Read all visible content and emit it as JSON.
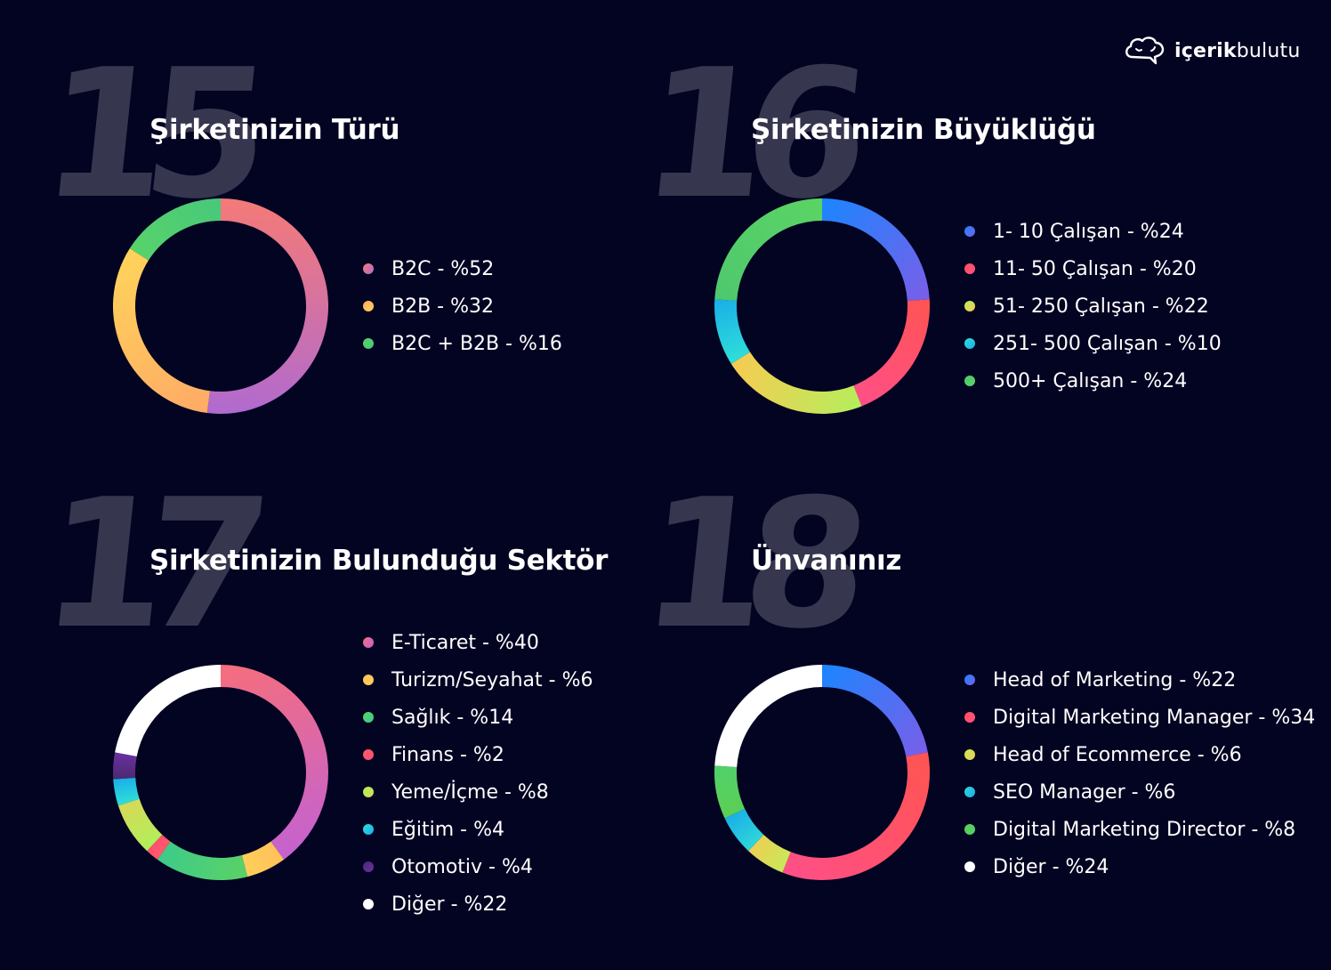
{
  "brand": {
    "name_bold": "içerik",
    "name_light": "bulutu",
    "icon": "cloud-chat-icon"
  },
  "background_color": "#030322",
  "big_number_color": "#37364f",
  "panels": [
    {
      "number": "15",
      "title": "Şirketinizin Türü",
      "legend": [
        {
          "label": "B2C - %52",
          "colors": [
            "#f47a78",
            "#b06ad0"
          ]
        },
        {
          "label": "B2B - %32",
          "colors": [
            "#ffaa66",
            "#ffd45a"
          ]
        },
        {
          "label": "B2C + B2B - %16",
          "colors": [
            "#58d36a",
            "#48c87a"
          ]
        }
      ]
    },
    {
      "number": "16",
      "title": "Şirketinizin Büyüklüğü",
      "legend": [
        {
          "label": "1- 10 Çalışan - %24",
          "colors": [
            "#1a86ff",
            "#7a5ee8"
          ]
        },
        {
          "label": "11- 50 Çalışan - %20",
          "colors": [
            "#ff5452",
            "#ff4f88"
          ]
        },
        {
          "label": "51- 250 Çalışan - %22",
          "colors": [
            "#b5ee5c",
            "#f7cb52"
          ]
        },
        {
          "label": "251- 500 Çalışan - %10",
          "colors": [
            "#2fe0d8",
            "#1aaee8"
          ]
        },
        {
          "label": "500+ Çalışan - %24",
          "colors": [
            "#4ec86e",
            "#5bd464"
          ]
        }
      ]
    },
    {
      "number": "17",
      "title": "Şirketinizin Bulunduğu Sektör",
      "legend": [
        {
          "label": "E-Ticaret - %40",
          "colors": [
            "#f56e7c",
            "#c462d0"
          ]
        },
        {
          "label": "Turizm/Seyahat - %6",
          "colors": [
            "#ffc05a",
            "#ffd05a"
          ]
        },
        {
          "label": "Sağlık - %14",
          "colors": [
            "#5cd166",
            "#3ccb8a"
          ]
        },
        {
          "label": "Finans - %2",
          "colors": [
            "#ff5a6c",
            "#ff4f70"
          ]
        },
        {
          "label": "Yeme/İçme - %8",
          "colors": [
            "#b0f05a",
            "#d8d858"
          ]
        },
        {
          "label": "Eğitim - %4",
          "colors": [
            "#2fe0d8",
            "#1aaee8"
          ]
        },
        {
          "label": "Otomotiv - %4",
          "colors": [
            "#4a2a70",
            "#6a30a0"
          ]
        },
        {
          "label": "Diğer - %22",
          "colors": [
            "#ffffff",
            "#ffffff"
          ]
        }
      ]
    },
    {
      "number": "18",
      "title": "Ünvanınız",
      "legend": [
        {
          "label": "Head of Marketing - %22",
          "colors": [
            "#1a86ff",
            "#7a5ee8"
          ]
        },
        {
          "label": "Digital Marketing Manager - %34",
          "colors": [
            "#ff5452",
            "#ff4f88"
          ]
        },
        {
          "label": "Head of Ecommerce - %6",
          "colors": [
            "#c8e85a",
            "#eecf52"
          ]
        },
        {
          "label": "SEO Manager - %6",
          "colors": [
            "#2fd8d8",
            "#1aaee8"
          ]
        },
        {
          "label": "Digital Marketing Director - %8",
          "colors": [
            "#5ccf54",
            "#50d06c"
          ]
        },
        {
          "label": "Diğer - %24",
          "colors": [
            "#ffffff",
            "#ffffff"
          ]
        }
      ]
    }
  ],
  "chart_data": [
    {
      "type": "pie",
      "title": "Şirketinizin Türü",
      "categories": [
        "B2C",
        "B2B",
        "B2C + B2B"
      ],
      "values": [
        52,
        32,
        16
      ],
      "unit": "%",
      "donut": true,
      "legend_position": "right"
    },
    {
      "type": "pie",
      "title": "Şirketinizin Büyüklüğü",
      "categories": [
        "1- 10 Çalışan",
        "11- 50 Çalışan",
        "51- 250 Çalışan",
        "251- 500 Çalışan",
        "500+ Çalışan"
      ],
      "values": [
        24,
        20,
        22,
        10,
        24
      ],
      "unit": "%",
      "donut": true,
      "legend_position": "right"
    },
    {
      "type": "pie",
      "title": "Şirketinizin Bulunduğu Sektör",
      "categories": [
        "E-Ticaret",
        "Turizm/Seyahat",
        "Sağlık",
        "Finans",
        "Yeme/İçme",
        "Eğitim",
        "Otomotiv",
        "Diğer"
      ],
      "values": [
        40,
        6,
        14,
        2,
        8,
        4,
        4,
        22
      ],
      "unit": "%",
      "donut": true,
      "legend_position": "right"
    },
    {
      "type": "pie",
      "title": "Ünvanınız",
      "categories": [
        "Head of Marketing",
        "Digital Marketing Manager",
        "Head of Ecommerce",
        "SEO Manager",
        "Digital Marketing Director",
        "Diğer"
      ],
      "values": [
        22,
        34,
        6,
        6,
        8,
        24
      ],
      "unit": "%",
      "donut": true,
      "legend_position": "right"
    }
  ]
}
